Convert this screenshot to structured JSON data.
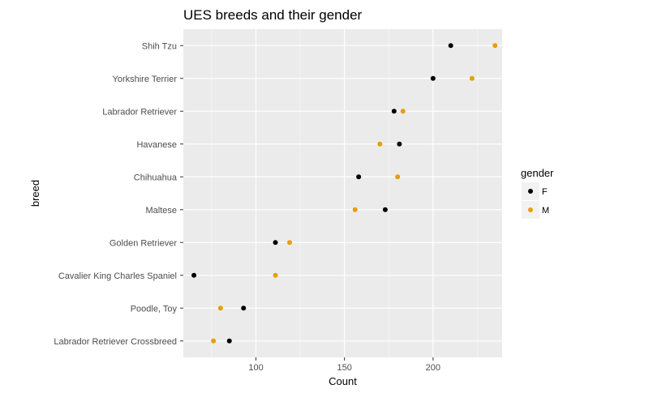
{
  "chart_data": {
    "type": "scatter",
    "title": "UES breeds and their gender",
    "xlabel": "Count",
    "ylabel": "breed",
    "xlim": [
      59,
      239
    ],
    "xticks": [
      100,
      150,
      200
    ],
    "grid": true,
    "legend": {
      "title": "gender",
      "placement": "right"
    },
    "categories": [
      "Shih Tzu",
      "Yorkshire Terrier",
      "Labrador Retriever",
      "Havanese",
      "Chihuahua",
      "Maltese",
      "Golden Retriever",
      "Cavalier King Charles Spaniel",
      "Poodle, Toy",
      "Labrador Retriever Crossbreed"
    ],
    "series": [
      {
        "name": "F",
        "color": "#000000",
        "values": [
          210,
          200,
          178,
          181,
          158,
          173,
          111,
          65,
          93,
          85
        ]
      },
      {
        "name": "M",
        "color": "#E69F00",
        "values": [
          235,
          222,
          183,
          170,
          180,
          156,
          119,
          111,
          80,
          76
        ]
      }
    ]
  }
}
